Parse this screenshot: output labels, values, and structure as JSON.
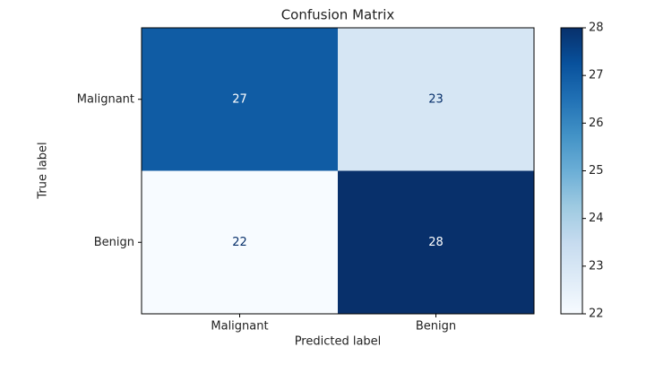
{
  "chart_data": {
    "type": "heatmap",
    "title": "Confusion Matrix",
    "x_label": "Predicted label",
    "y_label": "True label",
    "x_categories": [
      "Malignant",
      "Benign"
    ],
    "y_categories": [
      "Malignant",
      "Benign"
    ],
    "values": [
      [
        27,
        23
      ],
      [
        22,
        28
      ]
    ],
    "colormap": [
      "#f7fbff",
      "#deebf7",
      "#c6dbef",
      "#9ecae1",
      "#6baed6",
      "#4292c6",
      "#2171b5",
      "#08519c",
      "#08306b"
    ],
    "colorbar": {
      "lim": [
        22,
        28
      ],
      "ticks": [
        22,
        23,
        24,
        25,
        26,
        27,
        28
      ]
    }
  }
}
